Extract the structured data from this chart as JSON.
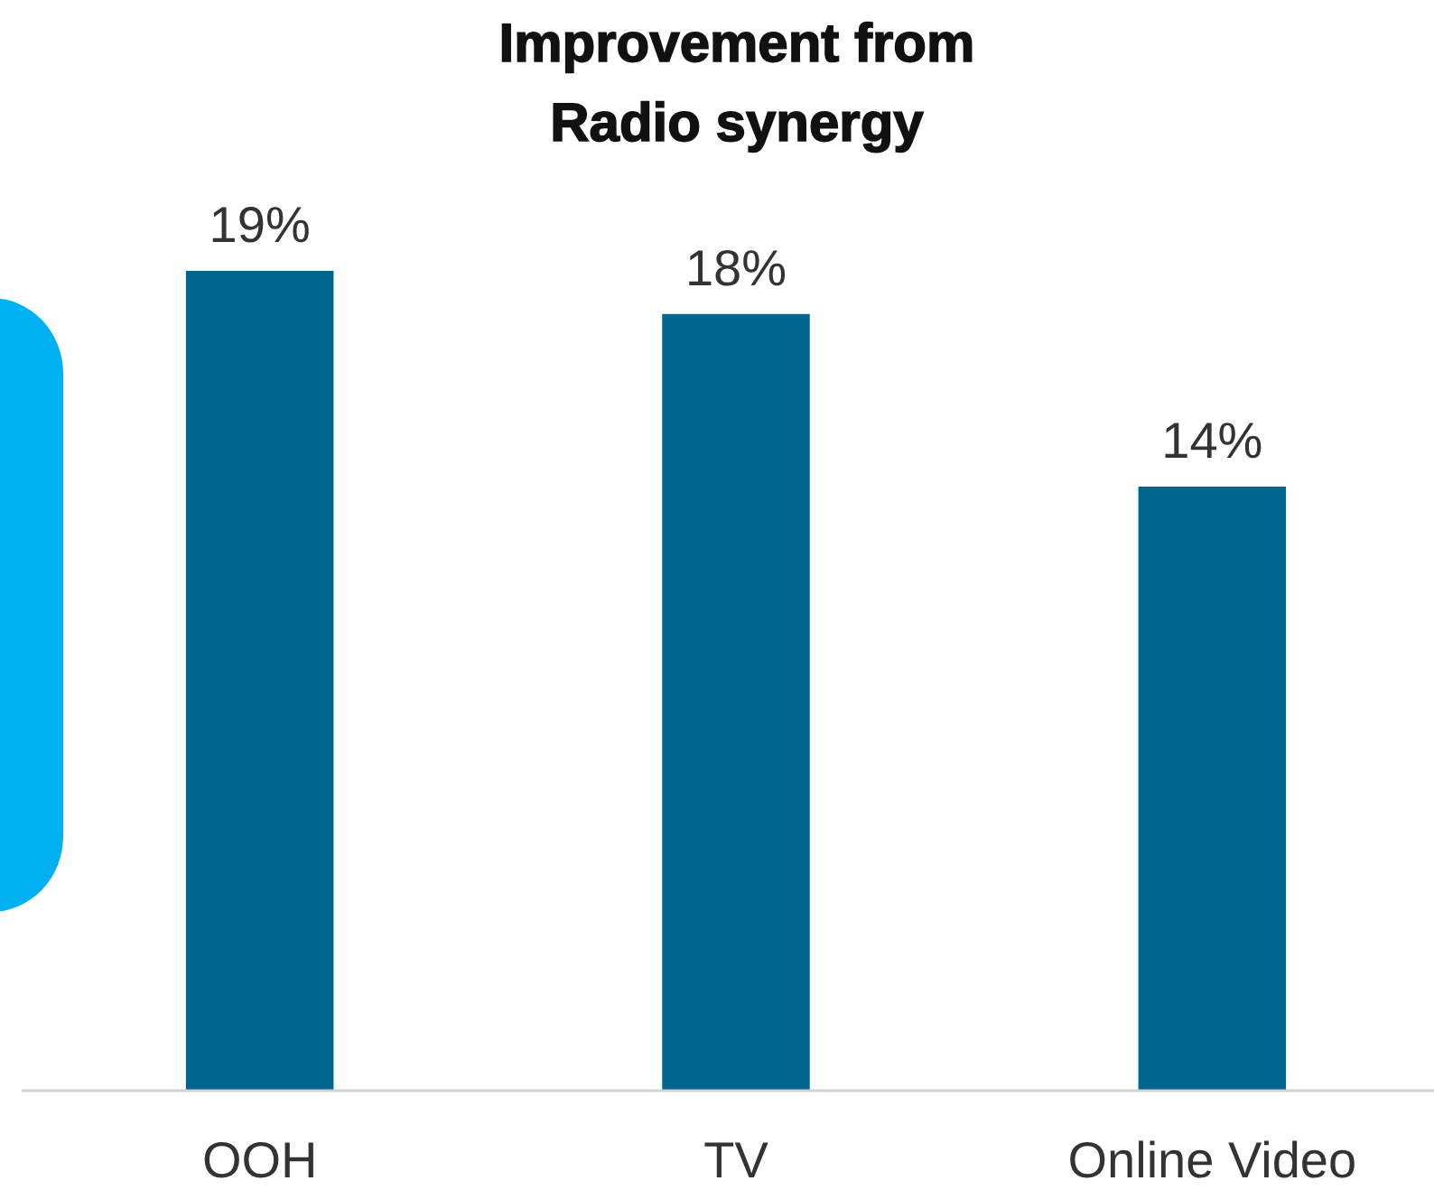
{
  "chart_data": {
    "type": "bar",
    "title": "Improvement from\nRadio synergy",
    "categories": [
      "OOH",
      "TV",
      "Online Video"
    ],
    "values": [
      19,
      18,
      14
    ],
    "value_labels": [
      "19%",
      "18%",
      "14%"
    ],
    "color": "#00668f"
  }
}
